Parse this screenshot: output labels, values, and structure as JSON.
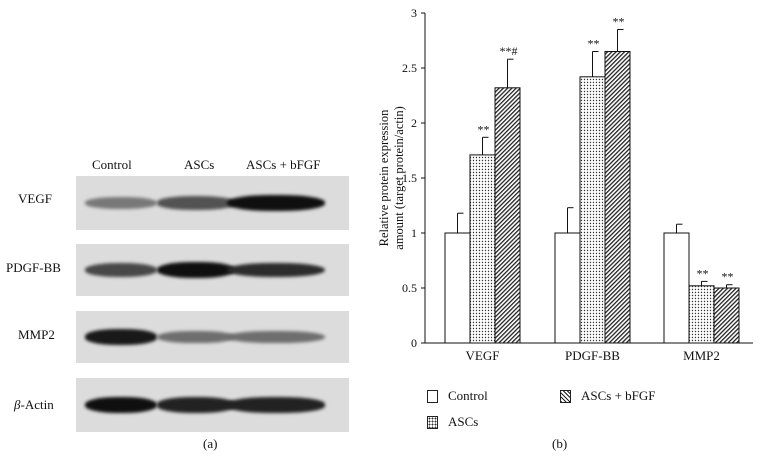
{
  "panel_a": {
    "caption": "(a)",
    "lanes": [
      "Control",
      "ASCs",
      "ASCs + bFGF"
    ],
    "rows": [
      {
        "label": "VEGF",
        "intensity": [
          0.45,
          0.65,
          1.0
        ]
      },
      {
        "label": "PDGF-BB",
        "intensity": [
          0.7,
          1.0,
          0.85
        ]
      },
      {
        "label": "MMP2",
        "intensity": [
          0.95,
          0.5,
          0.5
        ]
      },
      {
        "label": "β-Actin",
        "label_italic": "β",
        "label_rest": "-Actin",
        "intensity": [
          1.0,
          0.9,
          0.9
        ]
      }
    ]
  },
  "panel_b": {
    "caption": "(b)"
  },
  "chart_data": {
    "type": "bar",
    "categories": [
      "VEGF",
      "PDGF-BB",
      "MMP2"
    ],
    "series": [
      {
        "name": "Control",
        "values": [
          1.0,
          1.0,
          1.0
        ],
        "errors": [
          0.18,
          0.23,
          0.08
        ],
        "annotations": [
          "",
          "",
          ""
        ]
      },
      {
        "name": "ASCs",
        "values": [
          1.71,
          2.42,
          0.52
        ],
        "errors": [
          0.16,
          0.23,
          0.04
        ],
        "annotations": [
          "**",
          "**",
          "**"
        ]
      },
      {
        "name": "ASCs + bFGF",
        "values": [
          2.32,
          2.65,
          0.5
        ],
        "errors": [
          0.26,
          0.2,
          0.03
        ],
        "annotations": [
          "**#",
          "**",
          "**"
        ]
      }
    ],
    "ylabel_line1": "Relative protein expression",
    "ylabel_line2": "amount (target protein/actin)",
    "ylim": [
      0,
      3
    ],
    "yticks": [
      "0",
      "0.5",
      "1",
      "1.5",
      "2",
      "2.5",
      "3"
    ],
    "grid": false,
    "legend_position": "bottom"
  }
}
